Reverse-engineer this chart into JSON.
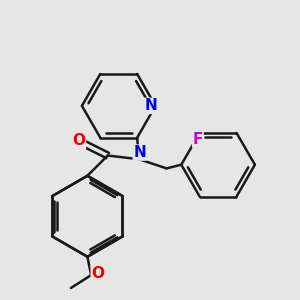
{
  "background_color": "#e6e6e6",
  "bond_color": "#1a1a1a",
  "bond_width": 1.8,
  "atom_colors": {
    "N": "#0000ee",
    "O": "#ee0000",
    "F": "#cc00cc"
  },
  "font_size_atoms": 11,
  "figsize": [
    3.0,
    3.0
  ],
  "dpi": 100
}
